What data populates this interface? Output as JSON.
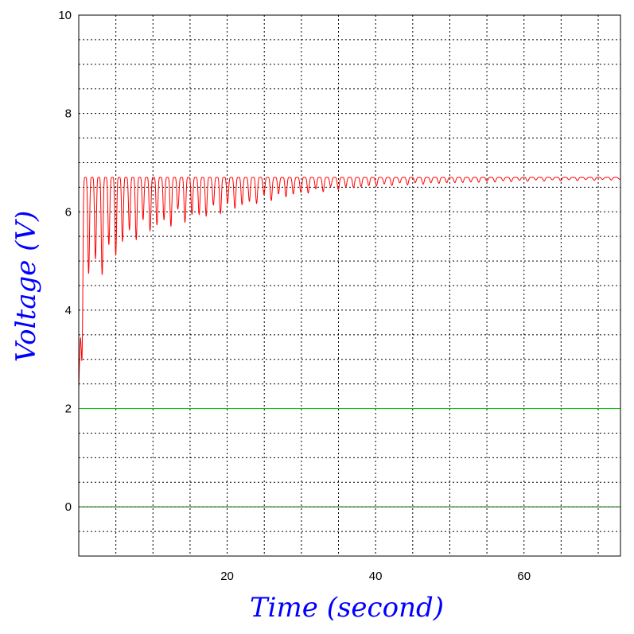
{
  "chart_data": {
    "type": "line",
    "title": "",
    "xlabel": "Time (second)",
    "ylabel": "Voltage (V)",
    "xlim": [
      0,
      73
    ],
    "ylim": [
      -1,
      10
    ],
    "x_ticks": [
      20,
      40,
      60
    ],
    "y_ticks": [
      0,
      2,
      4,
      6,
      8,
      10
    ],
    "x_minor_grid_step": 5,
    "y_minor_grid_step": 0.5,
    "grid": true,
    "grid_style": "dotted",
    "legend": "none",
    "series": [
      {
        "color": "#ff0000",
        "description": "oscillating response rising from about 2.4 to a plateau near 6.7 with decaying dips",
        "x": [
          0,
          0.3,
          0.6,
          1.0,
          2,
          4,
          6,
          10,
          15,
          20,
          25,
          30,
          35,
          40,
          45,
          50,
          55,
          60,
          65,
          70,
          73
        ],
        "upper": [
          2.4,
          4.0,
          6.7,
          6.7,
          6.7,
          6.7,
          6.7,
          6.7,
          6.7,
          6.7,
          6.7,
          6.7,
          6.7,
          6.7,
          6.7,
          6.7,
          6.7,
          6.7,
          6.7,
          6.7,
          6.7
        ],
        "lower": [
          2.4,
          2.6,
          3.5,
          4.5,
          4.6,
          4.8,
          5.3,
          5.6,
          5.8,
          6.0,
          6.2,
          6.35,
          6.45,
          6.52,
          6.55,
          6.58,
          6.6,
          6.62,
          6.63,
          6.64,
          6.65
        ]
      },
      {
        "color": "#00cc00",
        "description": "constant reference level",
        "x": [
          0,
          73
        ],
        "values": [
          2,
          2
        ]
      },
      {
        "color": "#006600",
        "description": "constant zero level",
        "x": [
          0,
          73
        ],
        "values": [
          0,
          0
        ]
      }
    ]
  },
  "colors": {
    "axis_title": "#0000ff",
    "frame": "#000000",
    "grid": "#000000"
  }
}
